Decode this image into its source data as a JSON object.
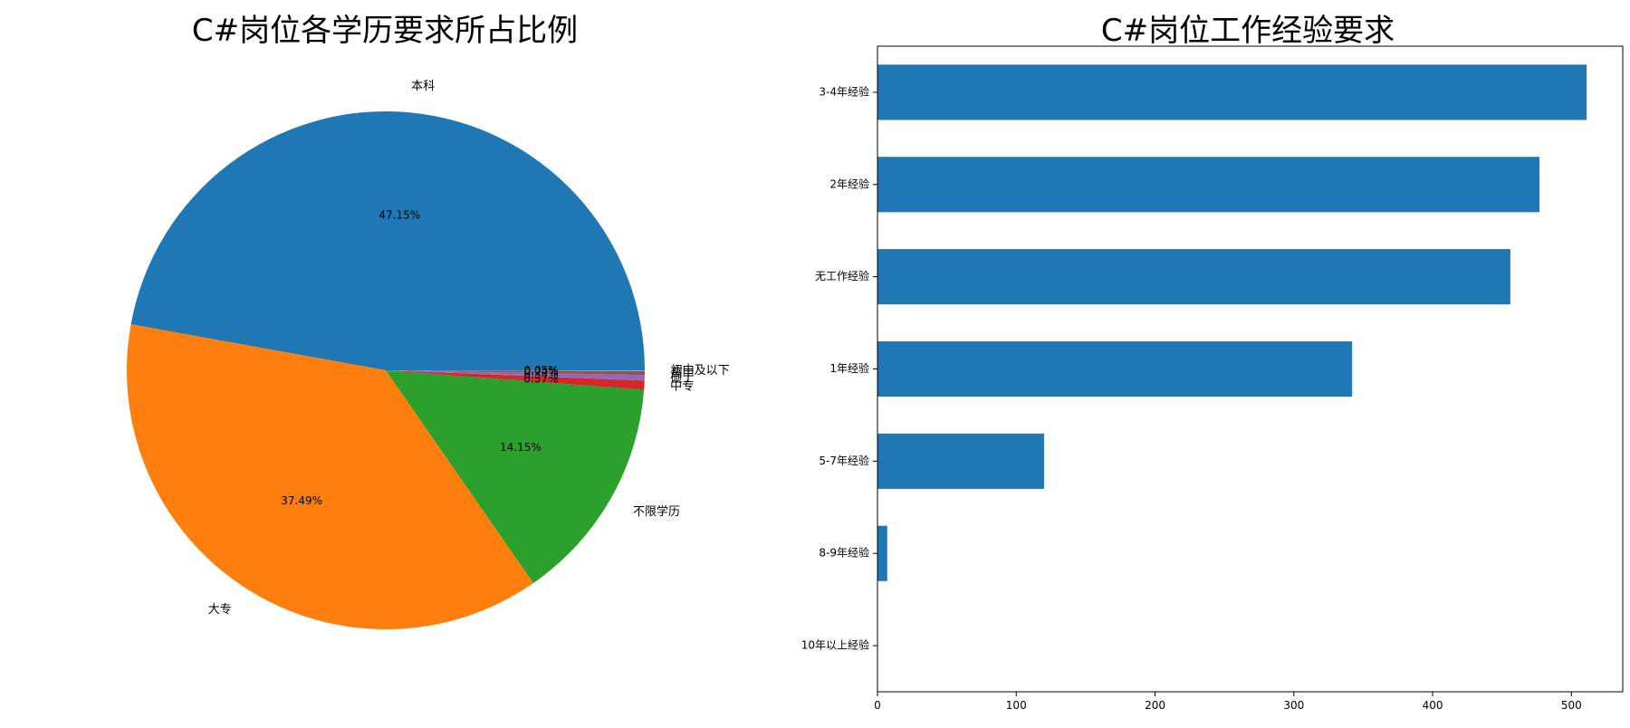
{
  "chart_data": [
    {
      "type": "pie",
      "title": "C#岗位各学历要求所占比例",
      "slices": [
        {
          "label": "本科",
          "value": 47.15,
          "pct_label": "47.15%",
          "color": "#1f77b4"
        },
        {
          "label": "大专",
          "value": 37.49,
          "pct_label": "37.49%",
          "color": "#ff7f0e"
        },
        {
          "label": "不限学历",
          "value": 14.15,
          "pct_label": "14.15%",
          "color": "#2ca02c"
        },
        {
          "label": "中专",
          "value": 0.57,
          "pct_label": "0.57%",
          "color": "#d62728"
        },
        {
          "label": "硕士",
          "value": 0.34,
          "pct_label": "0.34%",
          "color": "#9467bd"
        },
        {
          "label": "高中",
          "value": 0.24,
          "pct_label": "0.24%",
          "color": "#8c564b"
        },
        {
          "label": "初中及以下",
          "value": 0.05,
          "pct_label": "0.05%",
          "color": "#e377c2"
        }
      ],
      "start_angle_deg": 0,
      "direction": "counterclockwise"
    },
    {
      "type": "bar",
      "orientation": "horizontal",
      "title": "C#岗位工作经验要求",
      "categories": [
        "3-4年经验",
        "2年经验",
        "无工作经验",
        "1年经验",
        "5-7年经验",
        "8-9年经验",
        "10年以上经验"
      ],
      "values": [
        511,
        477,
        456,
        342,
        120,
        7,
        0
      ],
      "xlim": [
        0,
        537
      ],
      "xticks": [
        0,
        100,
        200,
        300,
        400,
        500
      ],
      "color": "#1f77b4"
    }
  ]
}
